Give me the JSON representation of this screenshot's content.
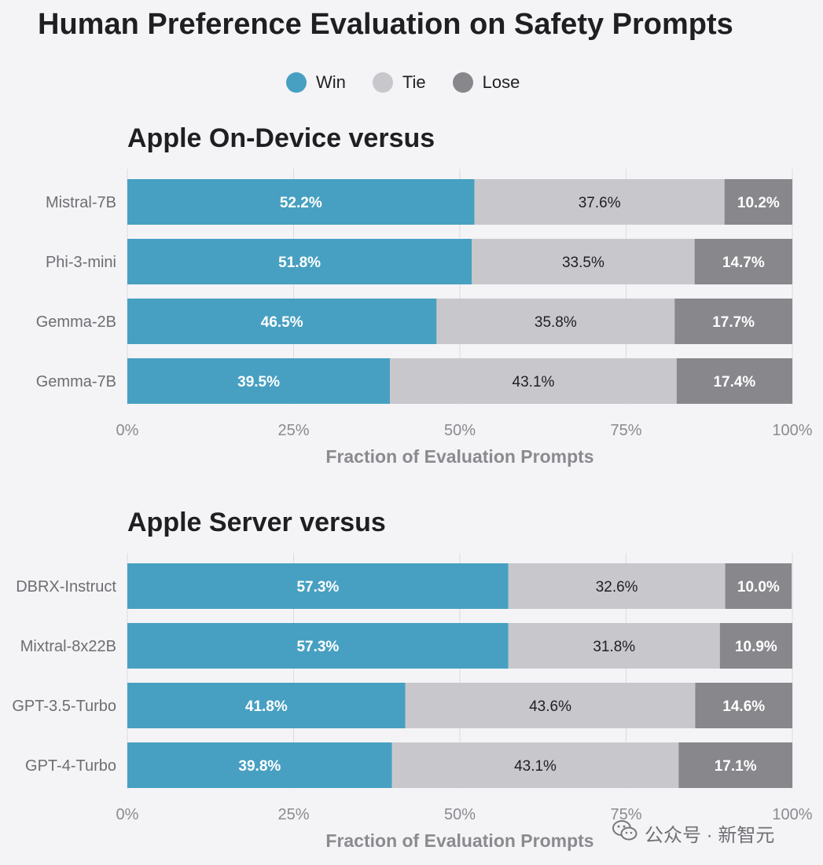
{
  "title": "Human Preference Evaluation on Safety Prompts",
  "legend": [
    {
      "label": "Win",
      "color": "#47a0c1"
    },
    {
      "label": "Tie",
      "color": "#c8c8cc"
    },
    {
      "label": "Lose",
      "color": "#87878c"
    }
  ],
  "watermark": {
    "text": "公众号 · 新智元",
    "icon": "wechat-icon"
  },
  "chart_data": [
    {
      "type": "bar",
      "orientation": "horizontal",
      "stacked": true,
      "title": "Apple On-Device versus",
      "xlabel": "Fraction of Evaluation Prompts",
      "ylabel": "",
      "xlim": [
        0,
        100
      ],
      "x_ticks": [
        "0%",
        "25%",
        "50%",
        "75%",
        "100%"
      ],
      "grid": true,
      "categories": [
        "Mistral-7B",
        "Phi-3-mini",
        "Gemma-2B",
        "Gemma-7B"
      ],
      "series": [
        {
          "name": "Win",
          "values": [
            52.2,
            51.8,
            46.5,
            39.5
          ],
          "labels": [
            "52.2%",
            "51.8%",
            "46.5%",
            "39.5%"
          ]
        },
        {
          "name": "Tie",
          "values": [
            37.6,
            33.5,
            35.8,
            43.1
          ],
          "labels": [
            "37.6%",
            "33.5%",
            "35.8%",
            "43.1%"
          ]
        },
        {
          "name": "Lose",
          "values": [
            10.2,
            14.7,
            17.7,
            17.4
          ],
          "labels": [
            "10.2%",
            "14.7%",
            "17.7%",
            "17.4%"
          ]
        }
      ]
    },
    {
      "type": "bar",
      "orientation": "horizontal",
      "stacked": true,
      "title": "Apple Server versus",
      "xlabel": "Fraction of Evaluation Prompts",
      "ylabel": "",
      "xlim": [
        0,
        100
      ],
      "x_ticks": [
        "0%",
        "25%",
        "50%",
        "75%",
        "100%"
      ],
      "grid": true,
      "categories": [
        "DBRX-Instruct",
        "Mixtral-8x22B",
        "GPT-3.5-Turbo",
        "GPT-4-Turbo"
      ],
      "series": [
        {
          "name": "Win",
          "values": [
            57.3,
            57.3,
            41.8,
            39.8
          ],
          "labels": [
            "57.3%",
            "57.3%",
            "41.8%",
            "39.8%"
          ]
        },
        {
          "name": "Tie",
          "values": [
            32.6,
            31.8,
            43.6,
            43.1
          ],
          "labels": [
            "32.6%",
            "31.8%",
            "43.6%",
            "43.1%"
          ]
        },
        {
          "name": "Lose",
          "values": [
            10.0,
            10.9,
            14.6,
            17.1
          ],
          "labels": [
            "10.0%",
            "10.9%",
            "14.6%",
            "17.1%"
          ]
        }
      ]
    }
  ]
}
